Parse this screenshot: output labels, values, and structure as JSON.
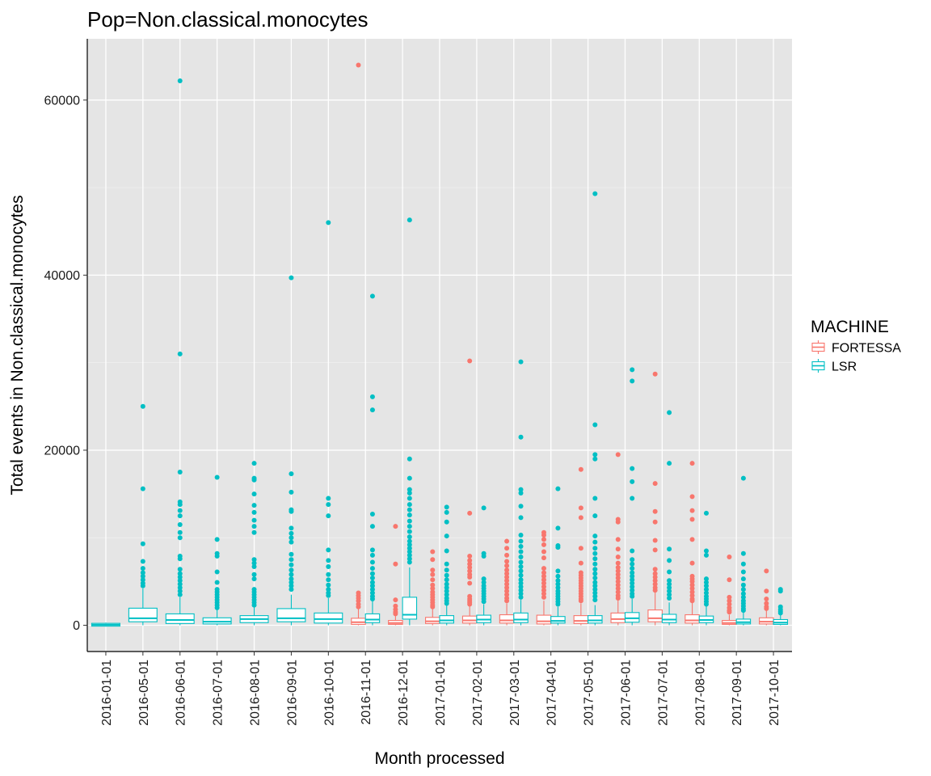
{
  "chart_data": {
    "type": "boxplot",
    "title": "Pop=Non.classical.monocytes",
    "xlabel": "Month processed",
    "ylabel": "Total events in Non.classical.monocytes",
    "ylim": [
      -3000,
      67000
    ],
    "yticks": [
      0,
      20000,
      40000,
      60000
    ],
    "ytick_labels": [
      "0",
      "20000",
      "40000",
      "60000"
    ],
    "categories": [
      "2016-01-01",
      "2016-05-01",
      "2016-06-01",
      "2016-07-01",
      "2016-08-01",
      "2016-09-01",
      "2016-10-01",
      "2016-11-01",
      "2016-12-01",
      "2017-01-01",
      "2017-02-01",
      "2017-03-01",
      "2017-04-01",
      "2017-05-01",
      "2017-06-01",
      "2017-07-01",
      "2017-08-01",
      "2017-09-01",
      "2017-10-01"
    ],
    "grid": true,
    "legend": {
      "title": "MACHINE",
      "position": "right",
      "entries": [
        {
          "name": "FORTESSA",
          "color": "#F8766D"
        },
        {
          "name": "LSR",
          "color": "#00BFC4"
        }
      ]
    },
    "series": [
      {
        "name": "FORTESSA",
        "color": "#F8766D",
        "boxes": [
          {
            "category": "2016-11-01",
            "q1": 100,
            "median": 350,
            "q3": 800,
            "whisker_low": 0,
            "whisker_high": 1900,
            "outliers": [
              64000,
              3700,
              3400,
              3100,
              2800,
              2400,
              2100
            ]
          },
          {
            "category": "2016-12-01",
            "q1": 100,
            "median": 250,
            "q3": 550,
            "whisker_low": 0,
            "whisker_high": 1100,
            "outliers": [
              11300,
              7000,
              2900,
              2200,
              1800,
              1500,
              1300
            ]
          },
          {
            "category": "2017-01-01",
            "q1": 200,
            "median": 450,
            "q3": 900,
            "whisker_low": 0,
            "whisker_high": 1900,
            "outliers": [
              8400,
              7500,
              6300,
              5800,
              5200,
              4600,
              4200,
              3800,
              3500,
              3200,
              2900,
              2600,
              2300,
              2100
            ]
          },
          {
            "category": "2017-02-01",
            "q1": 250,
            "median": 550,
            "q3": 1050,
            "whisker_low": 0,
            "whisker_high": 2200,
            "outliers": [
              30200,
              12800,
              7900,
              7400,
              7000,
              6600,
              6200,
              5800,
              5500,
              4800,
              3300,
              3000,
              2800,
              2600,
              2400
            ]
          },
          {
            "category": "2017-03-01",
            "q1": 250,
            "median": 550,
            "q3": 1200,
            "whisker_low": 0,
            "whisker_high": 2500,
            "outliers": [
              9600,
              8800,
              8000,
              7300,
              6800,
              6300,
              5900,
              5500,
              5100,
              4700,
              4300,
              3900,
              3500,
              3100,
              2800
            ]
          },
          {
            "category": "2017-04-01",
            "q1": 150,
            "median": 450,
            "q3": 1150,
            "whisker_low": 0,
            "whisker_high": 2800,
            "outliers": [
              10600,
              10300,
              9800,
              9200,
              8400,
              7700,
              6500,
              6000,
              5600,
              5200,
              4800,
              4400,
              4000,
              3600,
              3200
            ]
          },
          {
            "category": "2017-05-01",
            "q1": 200,
            "median": 500,
            "q3": 1100,
            "whisker_low": 0,
            "whisker_high": 2500,
            "outliers": [
              17800,
              13400,
              12300,
              8800,
              7100,
              6000,
              5700,
              5400,
              5100,
              4800,
              4500,
              4200,
              3900,
              3600,
              3300,
              3000,
              2800
            ]
          },
          {
            "category": "2017-06-01",
            "q1": 300,
            "median": 700,
            "q3": 1400,
            "whisker_low": 0,
            "whisker_high": 2900,
            "outliers": [
              19500,
              12100,
              11800,
              9800,
              8700,
              7800,
              7100,
              6600,
              6200,
              5800,
              5400,
              5000,
              4600,
              4200,
              3800,
              3400,
              3100
            ]
          },
          {
            "category": "2017-07-01",
            "q1": 400,
            "median": 800,
            "q3": 1750,
            "whisker_low": 0,
            "whisker_high": 3800,
            "outliers": [
              28700,
              16200,
              13000,
              11800,
              9700,
              8600,
              6400,
              5900,
              5500,
              5100,
              4700,
              4300,
              4000
            ]
          },
          {
            "category": "2017-08-01",
            "q1": 250,
            "median": 550,
            "q3": 1200,
            "whisker_low": 0,
            "whisker_high": 2600,
            "outliers": [
              18500,
              14700,
              13100,
              12100,
              9800,
              7100,
              5600,
              5300,
              5000,
              4600,
              4200,
              3800,
              3400,
              3000,
              2800
            ]
          },
          {
            "category": "2017-09-01",
            "q1": 100,
            "median": 250,
            "q3": 550,
            "whisker_low": 0,
            "whisker_high": 1200,
            "outliers": [
              7800,
              5200,
              3200,
              2800,
              2400,
              2000,
              1700,
              1500
            ]
          },
          {
            "category": "2017-10-01",
            "q1": 150,
            "median": 400,
            "q3": 850,
            "whisker_low": 0,
            "whisker_high": 1700,
            "outliers": [
              6200,
              3900,
              3000,
              2500,
              2100,
              1900
            ]
          }
        ]
      },
      {
        "name": "LSR",
        "color": "#00BFC4",
        "boxes": [
          {
            "category": "2016-01-01",
            "q1": -100,
            "median": 60,
            "q3": 220,
            "whisker_low": -150,
            "whisker_high": 300,
            "outliers": []
          },
          {
            "category": "2016-05-01",
            "q1": 400,
            "median": 800,
            "q3": 1950,
            "whisker_low": 0,
            "whisker_high": 4200,
            "outliers": [
              25000,
              15600,
              9300,
              7300,
              6500,
              6000,
              5600,
              5200,
              4800,
              4500
            ]
          },
          {
            "category": "2016-06-01",
            "q1": 200,
            "median": 600,
            "q3": 1300,
            "whisker_low": 0,
            "whisker_high": 3200,
            "outliers": [
              62200,
              31000,
              17500,
              14100,
              13800,
              13100,
              12500,
              11500,
              10600,
              10000,
              7900,
              7600,
              6400,
              5900,
              5500,
              5100,
              4700,
              4300,
              3900,
              3500
            ]
          },
          {
            "category": "2016-07-01",
            "q1": 150,
            "median": 400,
            "q3": 850,
            "whisker_low": 0,
            "whisker_high": 1800,
            "outliers": [
              16900,
              9800,
              8200,
              7900,
              6100,
              4900,
              4100,
              3800,
              3500,
              3200,
              2900,
              2600,
              2300,
              2000
            ]
          },
          {
            "category": "2016-08-01",
            "q1": 300,
            "median": 700,
            "q3": 1100,
            "whisker_low": 0,
            "whisker_high": 2100,
            "outliers": [
              18500,
              16800,
              16600,
              15000,
              13700,
              12900,
              12000,
              11300,
              10600,
              7500,
              7100,
              6700,
              5800,
              5300,
              4100,
              3800,
              3500,
              3200,
              2900,
              2600,
              2300
            ]
          },
          {
            "category": "2016-09-01",
            "q1": 400,
            "median": 800,
            "q3": 1900,
            "whisker_low": 0,
            "whisker_high": 3500,
            "outliers": [
              39700,
              17300,
              15200,
              13200,
              13000,
              11100,
              10500,
              10000,
              9500,
              8100,
              7500,
              6900,
              6300,
              5800,
              5300,
              4900,
              4500,
              4100
            ]
          },
          {
            "category": "2016-10-01",
            "q1": 250,
            "median": 700,
            "q3": 1400,
            "whisker_low": 0,
            "whisker_high": 3100,
            "outliers": [
              46000,
              14500,
              13800,
              12500,
              8600,
              7400,
              6700,
              5800,
              5200,
              4600,
              4100,
              3700,
              3400
            ]
          },
          {
            "category": "2016-11-01",
            "q1": 300,
            "median": 650,
            "q3": 1300,
            "whisker_low": 0,
            "whisker_high": 2800,
            "outliers": [
              37600,
              26100,
              24600,
              12700,
              11300,
              8600,
              8000,
              7200,
              6500,
              5900,
              5400,
              4900,
              4500,
              4100,
              3700,
              3300,
              3000
            ]
          },
          {
            "category": "2016-12-01",
            "q1": 700,
            "median": 1200,
            "q3": 3200,
            "whisker_low": 0,
            "whisker_high": 6600,
            "outliers": [
              46300,
              19000,
              16800,
              15500,
              15100,
              14500,
              13800,
              13200,
              12600,
              11900,
              11300,
              10700,
              10100,
              9600,
              9200,
              8800,
              8400,
              8000,
              7600,
              7200
            ]
          },
          {
            "category": "2017-01-01",
            "q1": 250,
            "median": 550,
            "q3": 1100,
            "whisker_low": 0,
            "whisker_high": 2300,
            "outliers": [
              13500,
              12900,
              11800,
              10200,
              8500,
              7000,
              6300,
              5700,
              5200,
              4700,
              4300,
              3900,
              3500,
              3100,
              2800,
              2500
            ]
          },
          {
            "category": "2017-02-01",
            "q1": 300,
            "median": 650,
            "q3": 1150,
            "whisker_low": 0,
            "whisker_high": 2400,
            "outliers": [
              13400,
              8200,
              7900,
              5300,
              4900,
              4500,
              4200,
              3900,
              3600,
              3300,
              3000,
              2700
            ]
          },
          {
            "category": "2017-03-01",
            "q1": 300,
            "median": 650,
            "q3": 1400,
            "whisker_low": 0,
            "whisker_high": 2900,
            "outliers": [
              30100,
              21500,
              15500,
              15100,
              13600,
              12300,
              10300,
              9600,
              9000,
              8400,
              7800,
              7200,
              6700,
              6200,
              5700,
              5200,
              4800,
              4400,
              4000,
              3600,
              3200
            ]
          },
          {
            "category": "2017-04-01",
            "q1": 250,
            "median": 500,
            "q3": 1000,
            "whisker_low": 0,
            "whisker_high": 2100,
            "outliers": [
              15600,
              11100,
              9100,
              8900,
              6200,
              5600,
              5100,
              4700,
              4300,
              3900,
              3600,
              3300,
              3000,
              2700,
              2400
            ]
          },
          {
            "category": "2017-05-01",
            "q1": 250,
            "median": 550,
            "q3": 1100,
            "whisker_low": 0,
            "whisker_high": 2300,
            "outliers": [
              49300,
              22900,
              19500,
              19000,
              14500,
              12500,
              10200,
              9500,
              8800,
              8200,
              7600,
              7000,
              6400,
              5900,
              5400,
              4900,
              4500,
              4100,
              3700,
              3300,
              2900
            ]
          },
          {
            "category": "2017-06-01",
            "q1": 350,
            "median": 800,
            "q3": 1450,
            "whisker_low": 0,
            "whisker_high": 3000,
            "outliers": [
              29200,
              27900,
              17900,
              16400,
              14500,
              8500,
              7500,
              7000,
              6500,
              6000,
              5600,
              5200,
              4800,
              4400,
              4000,
              3600,
              3300
            ]
          },
          {
            "category": "2017-07-01",
            "q1": 300,
            "median": 650,
            "q3": 1250,
            "whisker_low": 0,
            "whisker_high": 2600,
            "outliers": [
              24300,
              18500,
              8700,
              7400,
              6100,
              5100,
              4700,
              4300,
              3900,
              3500,
              3100
            ]
          },
          {
            "category": "2017-08-01",
            "q1": 300,
            "median": 600,
            "q3": 1050,
            "whisker_low": 0,
            "whisker_high": 2200,
            "outliers": [
              12800,
              8500,
              8000,
              5300,
              4900,
              4500,
              4100,
              3700,
              3300,
              3000,
              2700,
              2400
            ]
          },
          {
            "category": "2017-09-01",
            "q1": 150,
            "median": 350,
            "q3": 700,
            "whisker_low": 0,
            "whisker_high": 1500,
            "outliers": [
              16800,
              8200,
              7000,
              6100,
              5300,
              4600,
              4100,
              3600,
              3200,
              2800,
              2500,
              2200,
              1900,
              1700
            ]
          },
          {
            "category": "2017-10-01",
            "q1": 100,
            "median": 300,
            "q3": 650,
            "whisker_low": 0,
            "whisker_high": 1300,
            "outliers": [
              4100,
              3900,
              2100,
              1800,
              1600,
              1400
            ]
          }
        ]
      }
    ]
  }
}
